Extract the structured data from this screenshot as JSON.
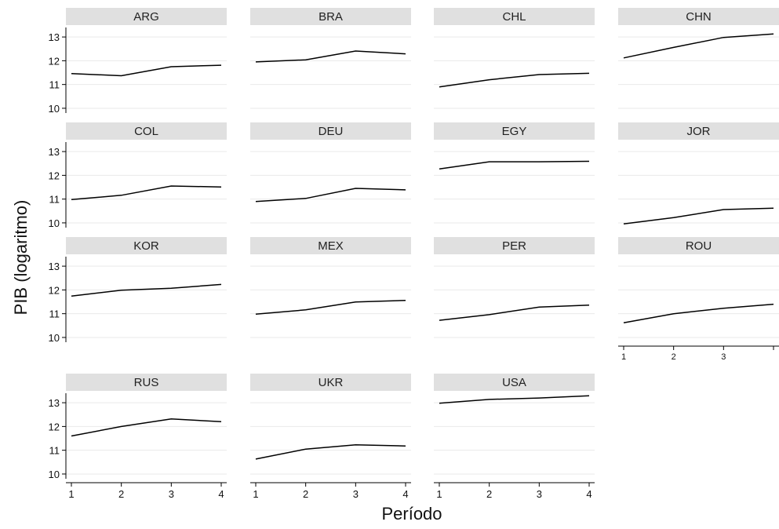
{
  "chart_data": {
    "type": "line",
    "xlabel": "Período",
    "ylabel": "PIB (logaritmo)",
    "x": [
      1,
      2,
      3,
      4
    ],
    "x_ticks": [
      "1",
      "2",
      "3",
      "4"
    ],
    "y_ticks": [
      "10",
      "11",
      "12",
      "13"
    ],
    "ylim": [
      9.8,
      13.4
    ],
    "grid": true,
    "line_color": "#000000",
    "strip_color": "#e0e0e0",
    "panels": [
      {
        "name": "ARG",
        "values": [
          11.46,
          11.37,
          11.75,
          11.81
        ]
      },
      {
        "name": "BRA",
        "values": [
          11.95,
          12.04,
          12.41,
          12.29
        ]
      },
      {
        "name": "CHL",
        "values": [
          10.9,
          11.2,
          11.42,
          11.47
        ]
      },
      {
        "name": "CHN",
        "values": [
          12.12,
          12.56,
          12.98,
          13.13
        ]
      },
      {
        "name": "COL",
        "values": [
          10.98,
          11.16,
          11.55,
          11.51
        ]
      },
      {
        "name": "DEU",
        "values": [
          10.9,
          11.03,
          11.45,
          11.39
        ]
      },
      {
        "name": "EGY",
        "values": [
          12.27,
          12.57,
          12.57,
          12.59
        ]
      },
      {
        "name": "JOR",
        "values": [
          9.96,
          10.22,
          10.56,
          10.62
        ]
      },
      {
        "name": "KOR",
        "values": [
          11.74,
          11.99,
          12.07,
          12.23
        ]
      },
      {
        "name": "MEX",
        "values": [
          10.98,
          11.16,
          11.49,
          11.56
        ]
      },
      {
        "name": "PER",
        "values": [
          10.72,
          10.96,
          11.28,
          11.36
        ]
      },
      {
        "name": "ROU",
        "values": [
          10.62,
          11.0,
          11.23,
          11.4
        ]
      },
      {
        "name": "RUS",
        "values": [
          11.6,
          12.0,
          12.32,
          12.2
        ]
      },
      {
        "name": "UKR",
        "values": [
          10.63,
          11.05,
          11.23,
          11.18
        ]
      },
      {
        "name": "USA",
        "values": [
          12.98,
          13.14,
          13.2,
          13.29
        ]
      }
    ]
  }
}
